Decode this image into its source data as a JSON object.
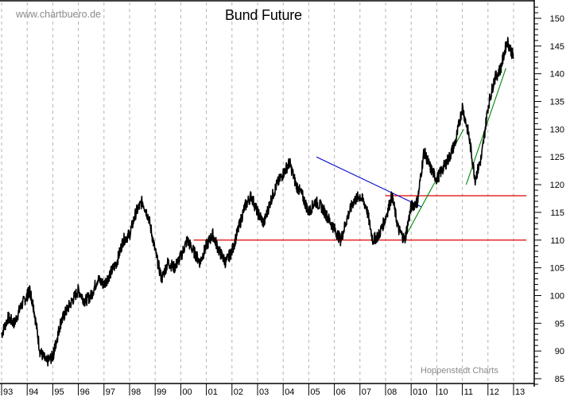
{
  "header": {
    "title": "Bund Future",
    "watermark": "www.chartbuero.de",
    "source": "Hoppenstedt Charts"
  },
  "colors": {
    "price_line": "#000000",
    "grid": "#b4b4b4",
    "resistance": "#e00000",
    "downtrend": "#0000cc",
    "uptrend": "#008800",
    "watermark_text": "#8a8a8a"
  },
  "chart_data": {
    "type": "line",
    "title": "Bund Future",
    "xlabel": "",
    "ylabel": "",
    "x_tick_labels": [
      "93",
      "94",
      "95",
      "96",
      "97",
      "98",
      "99",
      "00",
      "01",
      "02",
      "03",
      "04",
      "05",
      "06",
      "07",
      "08",
      "010",
      "10",
      "11",
      "12",
      "13"
    ],
    "y_tick_labels": [
      "85",
      "90",
      "95",
      "100",
      "105",
      "110",
      "115",
      "120",
      "125",
      "130",
      "135",
      "140",
      "145",
      "150"
    ],
    "ylim": [
      84,
      152.5
    ],
    "y_axis_position": "right",
    "grid": {
      "vertical": "dashed",
      "horizontal": "none"
    },
    "legend": "none",
    "series": [
      {
        "name": "Bund Future",
        "x": [
          1993.0,
          1993.25,
          1993.5,
          1993.75,
          1994.0,
          1994.1,
          1994.25,
          1994.5,
          1994.75,
          1995.0,
          1995.1,
          1995.3,
          1995.5,
          1995.75,
          1996.0,
          1996.25,
          1996.5,
          1996.75,
          1997.0,
          1997.25,
          1997.5,
          1997.75,
          1998.0,
          1998.25,
          1998.5,
          1998.75,
          1999.0,
          1999.25,
          1999.5,
          1999.75,
          2000.0,
          2000.25,
          2000.5,
          2000.75,
          2001.0,
          2001.25,
          2001.5,
          2001.75,
          2002.0,
          2002.25,
          2002.5,
          2002.75,
          2003.0,
          2003.25,
          2003.5,
          2003.75,
          2004.0,
          2004.25,
          2004.5,
          2004.75,
          2005.0,
          2005.25,
          2005.5,
          2005.75,
          2006.0,
          2006.25,
          2006.5,
          2006.75,
          2007.0,
          2007.25,
          2007.5,
          2007.75,
          2008.0,
          2008.25,
          2008.5,
          2008.75,
          2009.0,
          2009.25,
          2009.5,
          2009.75,
          2010.0,
          2010.25,
          2010.5,
          2010.75,
          2011.0,
          2011.25,
          2011.5,
          2011.75,
          2012.0,
          2012.25,
          2012.5,
          2012.75,
          2013.0
        ],
        "values": [
          93,
          96,
          95,
          98,
          100,
          101,
          98,
          90,
          88,
          89,
          91,
          95,
          97,
          99,
          101,
          99,
          100,
          103,
          102,
          104,
          106,
          110,
          111,
          115,
          117,
          114,
          108,
          103,
          106,
          105,
          107,
          110,
          108,
          106,
          109,
          111,
          108,
          106,
          108,
          112,
          116,
          118,
          115,
          113,
          117,
          120,
          122,
          124,
          120,
          118,
          115,
          117,
          116,
          114,
          112,
          110,
          114,
          117,
          118,
          116,
          110,
          111,
          114,
          118,
          112,
          110,
          116,
          117,
          126,
          123,
          121,
          123,
          125,
          128,
          134,
          129,
          121,
          125,
          134,
          139,
          141,
          146,
          143
        ]
      }
    ],
    "annotations": [
      {
        "type": "hline",
        "label": "support",
        "y": 110,
        "x_start": 2000.5,
        "x_end": 2013.5,
        "color": "#e00000"
      },
      {
        "type": "hline",
        "label": "resistance",
        "y": 118,
        "x_start": 2008.0,
        "x_end": 2013.5,
        "color": "#e00000"
      },
      {
        "type": "trendline",
        "label": "downtrend",
        "from": [
          2005.3,
          125
        ],
        "to": [
          2009.4,
          116
        ],
        "color": "#0000cc"
      },
      {
        "type": "trendline",
        "label": "uptrend-1",
        "from": [
          2008.7,
          110
        ],
        "to": [
          2011.05,
          130
        ],
        "color": "#008800"
      },
      {
        "type": "trendline",
        "label": "uptrend-2",
        "from": [
          2011.15,
          120
        ],
        "to": [
          2012.7,
          141
        ],
        "color": "#008800"
      }
    ]
  }
}
